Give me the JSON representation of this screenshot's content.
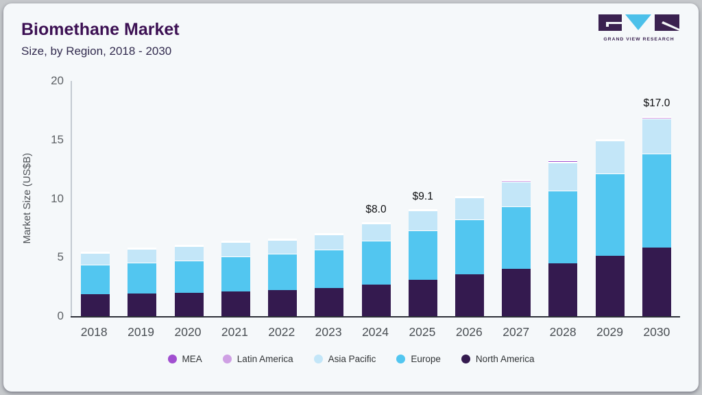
{
  "header": {
    "title": "Biomethane Market",
    "subtitle": "Size, by Region, 2018 - 2030",
    "logo_text": "GRAND VIEW RESEARCH"
  },
  "chart_data": {
    "type": "bar",
    "stacked": true,
    "title": "Biomethane Market",
    "subtitle": "Size, by Region, 2018 - 2030",
    "xlabel": "",
    "ylabel": "Market Size (US$B)",
    "ylim": [
      0,
      20
    ],
    "y_ticks": [
      0,
      5,
      10,
      15,
      20
    ],
    "grid": false,
    "legend_position": "bottom",
    "categories": [
      "2018",
      "2019",
      "2020",
      "2021",
      "2022",
      "2023",
      "2024",
      "2025",
      "2026",
      "2027",
      "2028",
      "2029",
      "2030"
    ],
    "series": [
      {
        "name": "North America",
        "color": "#341a4f",
        "values": [
          1.85,
          1.95,
          2.0,
          2.1,
          2.2,
          2.4,
          2.7,
          3.1,
          3.55,
          4.0,
          4.5,
          5.15,
          5.85
        ]
      },
      {
        "name": "Europe",
        "color": "#52c6f0",
        "values": [
          2.5,
          2.6,
          2.75,
          2.95,
          3.1,
          3.25,
          3.7,
          4.2,
          4.7,
          5.35,
          6.15,
          7.0,
          7.95
        ]
      },
      {
        "name": "Asia Pacific",
        "color": "#c3e6f8",
        "values": [
          1.0,
          1.15,
          1.2,
          1.25,
          1.2,
          1.3,
          1.5,
          1.7,
          1.85,
          2.1,
          2.4,
          2.75,
          3.0
        ]
      },
      {
        "name": "Latin America",
        "color": "#cfa0e4",
        "values": [
          0.04,
          0.04,
          0.04,
          0.05,
          0.05,
          0.05,
          0.05,
          0.05,
          0.06,
          0.07,
          0.08,
          0.08,
          0.1
        ]
      },
      {
        "name": "MEA",
        "color": "#a14fd0",
        "values": [
          0.04,
          0.04,
          0.04,
          0.05,
          0.05,
          0.05,
          0.05,
          0.05,
          0.06,
          0.07,
          0.08,
          0.08,
          0.1
        ]
      }
    ],
    "totals_approx": [
      5.4,
      5.8,
      6.0,
      6.4,
      6.6,
      7.0,
      8.0,
      9.1,
      10.2,
      11.6,
      13.2,
      15.1,
      17.0
    ],
    "bar_labels": {
      "2024": "$8.0",
      "2025": "$9.1",
      "2030": "$17.0"
    },
    "legend": [
      "MEA",
      "Latin America",
      "Asia Pacific",
      "Europe",
      "North America"
    ],
    "styles": {
      "card_background": "#f5f8fa",
      "frame_background": "#c6c9cc",
      "title_color": "#3c1053",
      "axis_line_color": "#c3cad1",
      "baseline_color": "#2d3139",
      "brand_purple": "#3a2150",
      "brand_blue": "#4cc0ea"
    }
  }
}
